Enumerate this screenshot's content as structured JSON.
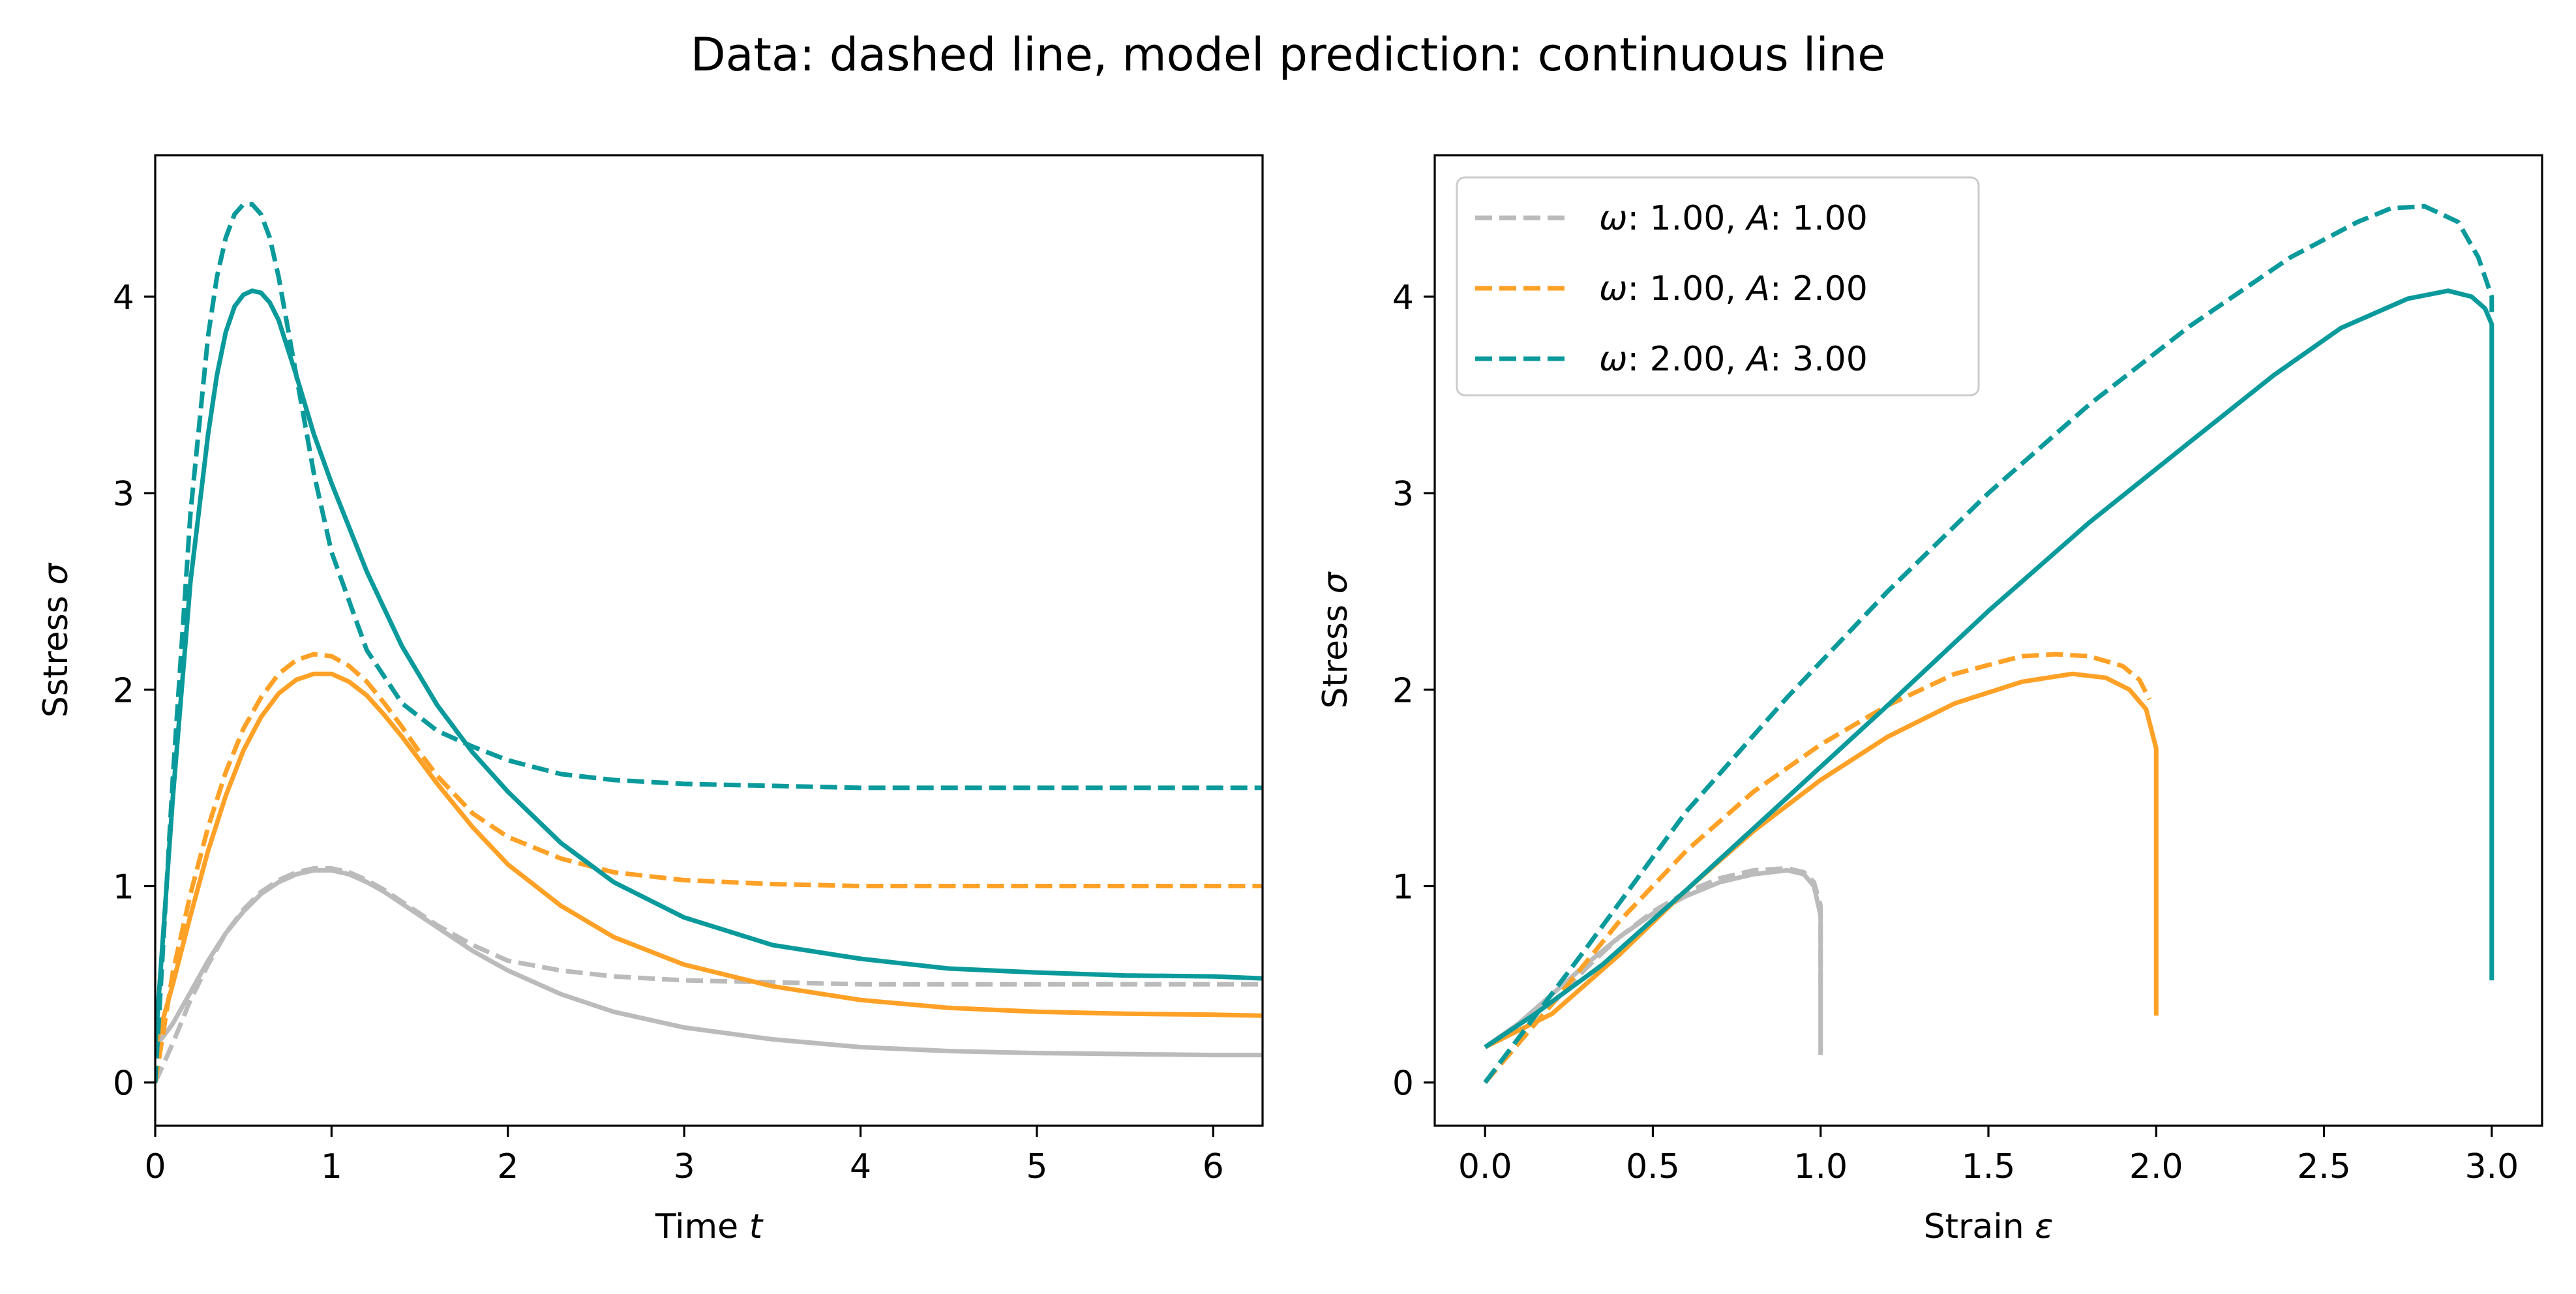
{
  "suptitle": "Data: dashed line, model prediction: continuous line",
  "chart_data": [
    {
      "type": "line",
      "xlabel": "Time t",
      "ylabel": "Sstress σ",
      "xlim": [
        0,
        6.28
      ],
      "ylim": [
        -0.22,
        4.72
      ],
      "xticks": [
        0,
        1,
        2,
        3,
        4,
        5,
        6
      ],
      "yticks": [
        0,
        1,
        2,
        3,
        4
      ],
      "grid": false,
      "series": [
        {
          "style": "dashed",
          "color": "#bbbbbb",
          "x": [
            0,
            0.1,
            0.2,
            0.3,
            0.4,
            0.5,
            0.6,
            0.7,
            0.8,
            0.9,
            1.0,
            1.1,
            1.2,
            1.3,
            1.4,
            1.5,
            1.6,
            1.8,
            2.0,
            2.3,
            2.6,
            3.0,
            3.5,
            4.0,
            5.0,
            6.28
          ],
          "y": [
            0.0,
            0.2,
            0.42,
            0.6,
            0.76,
            0.88,
            0.97,
            1.03,
            1.07,
            1.09,
            1.09,
            1.07,
            1.03,
            0.98,
            0.92,
            0.86,
            0.8,
            0.7,
            0.62,
            0.57,
            0.54,
            0.52,
            0.51,
            0.5,
            0.5,
            0.5
          ]
        },
        {
          "style": "solid",
          "color": "#bbbbbb",
          "x": [
            0,
            0.1,
            0.2,
            0.3,
            0.4,
            0.5,
            0.6,
            0.7,
            0.8,
            0.9,
            1.0,
            1.1,
            1.2,
            1.3,
            1.4,
            1.5,
            1.6,
            1.8,
            2.0,
            2.3,
            2.6,
            3.0,
            3.5,
            4.0,
            4.5,
            5.0,
            5.5,
            6.0,
            6.28
          ],
          "y": [
            0.18,
            0.3,
            0.46,
            0.62,
            0.76,
            0.87,
            0.96,
            1.02,
            1.06,
            1.08,
            1.08,
            1.06,
            1.02,
            0.97,
            0.91,
            0.85,
            0.79,
            0.67,
            0.57,
            0.45,
            0.36,
            0.28,
            0.22,
            0.18,
            0.16,
            0.15,
            0.145,
            0.14,
            0.14
          ]
        },
        {
          "style": "dashed",
          "color": "#ffa126",
          "x": [
            0,
            0.1,
            0.2,
            0.3,
            0.4,
            0.5,
            0.6,
            0.7,
            0.8,
            0.9,
            1.0,
            1.1,
            1.2,
            1.3,
            1.4,
            1.5,
            1.6,
            1.8,
            2.0,
            2.3,
            2.6,
            3.0,
            3.5,
            4.0,
            4.5,
            5.0,
            6.28
          ],
          "y": [
            0.0,
            0.56,
            0.96,
            1.3,
            1.58,
            1.8,
            1.96,
            2.08,
            2.15,
            2.18,
            2.17,
            2.12,
            2.04,
            1.93,
            1.81,
            1.68,
            1.56,
            1.37,
            1.25,
            1.14,
            1.07,
            1.03,
            1.01,
            1.0,
            1.0,
            1.0,
            1.0
          ]
        },
        {
          "style": "solid",
          "color": "#ffa126",
          "x": [
            0,
            0.1,
            0.2,
            0.3,
            0.4,
            0.5,
            0.6,
            0.7,
            0.8,
            0.9,
            1.0,
            1.1,
            1.2,
            1.3,
            1.4,
            1.5,
            1.6,
            1.8,
            2.0,
            2.3,
            2.6,
            3.0,
            3.5,
            4.0,
            4.5,
            5.0,
            5.5,
            6.0,
            6.28
          ],
          "y": [
            0.18,
            0.5,
            0.85,
            1.18,
            1.46,
            1.69,
            1.86,
            1.98,
            2.05,
            2.08,
            2.08,
            2.04,
            1.97,
            1.87,
            1.76,
            1.64,
            1.52,
            1.3,
            1.11,
            0.9,
            0.74,
            0.6,
            0.49,
            0.42,
            0.38,
            0.36,
            0.35,
            0.345,
            0.34
          ]
        },
        {
          "style": "dashed",
          "color": "#0b9a9c",
          "x": [
            0,
            0.1,
            0.2,
            0.3,
            0.35,
            0.4,
            0.45,
            0.5,
            0.55,
            0.6,
            0.65,
            0.7,
            0.8,
            0.9,
            1.0,
            1.2,
            1.4,
            1.6,
            1.8,
            2.0,
            2.3,
            2.6,
            3.0,
            3.5,
            4.0,
            5.0,
            6.28
          ],
          "y": [
            0.0,
            1.55,
            2.9,
            3.8,
            4.1,
            4.3,
            4.42,
            4.47,
            4.47,
            4.42,
            4.3,
            4.1,
            3.6,
            3.1,
            2.7,
            2.2,
            1.93,
            1.79,
            1.71,
            1.64,
            1.57,
            1.54,
            1.52,
            1.51,
            1.5,
            1.5,
            1.5
          ]
        },
        {
          "style": "solid",
          "color": "#0b9a9c",
          "x": [
            0,
            0.1,
            0.2,
            0.3,
            0.35,
            0.4,
            0.45,
            0.5,
            0.55,
            0.6,
            0.65,
            0.7,
            0.8,
            0.9,
            1.0,
            1.2,
            1.4,
            1.6,
            1.8,
            2.0,
            2.3,
            2.6,
            3.0,
            3.5,
            4.0,
            4.5,
            5.0,
            5.5,
            6.0,
            6.28
          ],
          "y": [
            0.18,
            1.45,
            2.55,
            3.3,
            3.6,
            3.82,
            3.95,
            4.01,
            4.03,
            4.02,
            3.97,
            3.88,
            3.6,
            3.3,
            3.05,
            2.6,
            2.22,
            1.92,
            1.68,
            1.48,
            1.22,
            1.02,
            0.84,
            0.7,
            0.63,
            0.58,
            0.56,
            0.545,
            0.54,
            0.53
          ]
        }
      ]
    },
    {
      "type": "line",
      "xlabel": "Strain ε",
      "ylabel": "Stress σ",
      "xlim": [
        -0.15,
        3.15
      ],
      "ylim": [
        -0.22,
        4.72
      ],
      "xticks": [
        0.0,
        0.5,
        1.0,
        1.5,
        2.0,
        2.5,
        3.0
      ],
      "xtick_labels": [
        "0.0",
        "0.5",
        "1.0",
        "1.5",
        "2.0",
        "2.5",
        "3.0"
      ],
      "yticks": [
        0,
        1,
        2,
        3,
        4
      ],
      "grid": false,
      "legend": {
        "placement": "upper-left",
        "entries": [
          {
            "color": "#bbbbbb",
            "style": "dashed",
            "label": "ω: 1.00, A: 1.00"
          },
          {
            "color": "#ffa126",
            "style": "dashed",
            "label": "ω: 1.00, A: 2.00"
          },
          {
            "color": "#0b9a9c",
            "style": "dashed",
            "label": "ω: 2.00, A: 3.00"
          }
        ]
      },
      "series": [
        {
          "style": "dashed",
          "color": "#bbbbbb",
          "x": [
            0.0,
            0.1,
            0.2,
            0.3,
            0.4,
            0.5,
            0.6,
            0.7,
            0.8,
            0.9,
            0.95,
            0.98,
            1.0,
            1.0,
            1.0
          ],
          "y": [
            0.0,
            0.2,
            0.4,
            0.58,
            0.74,
            0.87,
            0.97,
            1.04,
            1.08,
            1.09,
            1.07,
            1.02,
            0.9,
            0.7,
            0.5
          ]
        },
        {
          "style": "solid",
          "color": "#bbbbbb",
          "x": [
            0.0,
            0.1,
            0.2,
            0.3,
            0.4,
            0.5,
            0.6,
            0.7,
            0.8,
            0.9,
            0.95,
            0.98,
            1.0,
            1.0,
            1.0
          ],
          "y": [
            0.18,
            0.3,
            0.45,
            0.6,
            0.74,
            0.86,
            0.95,
            1.02,
            1.06,
            1.08,
            1.06,
            1.0,
            0.85,
            0.5,
            0.14
          ]
        },
        {
          "style": "dashed",
          "color": "#ffa126",
          "x": [
            0.0,
            0.2,
            0.4,
            0.6,
            0.8,
            1.0,
            1.2,
            1.4,
            1.6,
            1.7,
            1.8,
            1.9,
            1.95,
            1.98
          ],
          "y": [
            0.0,
            0.4,
            0.82,
            1.18,
            1.48,
            1.72,
            1.92,
            2.08,
            2.17,
            2.18,
            2.17,
            2.12,
            2.05,
            1.95
          ]
        },
        {
          "style": "solid",
          "color": "#ffa126",
          "x": [
            0.0,
            0.2,
            0.4,
            0.6,
            0.8,
            1.0,
            1.2,
            1.4,
            1.6,
            1.75,
            1.85,
            1.92,
            1.97,
            2.0,
            2.0,
            2.0
          ],
          "y": [
            0.18,
            0.35,
            0.65,
            0.98,
            1.28,
            1.54,
            1.76,
            1.93,
            2.04,
            2.08,
            2.06,
            2.0,
            1.9,
            1.7,
            1.0,
            0.34
          ]
        },
        {
          "style": "dashed",
          "color": "#0b9a9c",
          "x": [
            0.0,
            0.3,
            0.6,
            0.9,
            1.2,
            1.5,
            1.8,
            2.1,
            2.4,
            2.6,
            2.7,
            2.8,
            2.9,
            2.96,
            3.0,
            3.0
          ],
          "y": [
            0.0,
            0.68,
            1.38,
            1.96,
            2.5,
            3.0,
            3.45,
            3.85,
            4.2,
            4.38,
            4.45,
            4.46,
            4.38,
            4.2,
            4.0,
            3.9
          ]
        },
        {
          "style": "solid",
          "color": "#0b9a9c",
          "x": [
            0.0,
            0.15,
            0.35,
            0.6,
            0.9,
            1.2,
            1.5,
            1.8,
            2.1,
            2.35,
            2.55,
            2.75,
            2.87,
            2.94,
            2.98,
            3.0,
            3.0,
            3.0
          ],
          "y": [
            0.18,
            0.35,
            0.6,
            0.98,
            1.45,
            1.92,
            2.4,
            2.85,
            3.26,
            3.6,
            3.84,
            3.99,
            4.03,
            4.0,
            3.94,
            3.86,
            2.0,
            0.52
          ]
        }
      ]
    }
  ]
}
